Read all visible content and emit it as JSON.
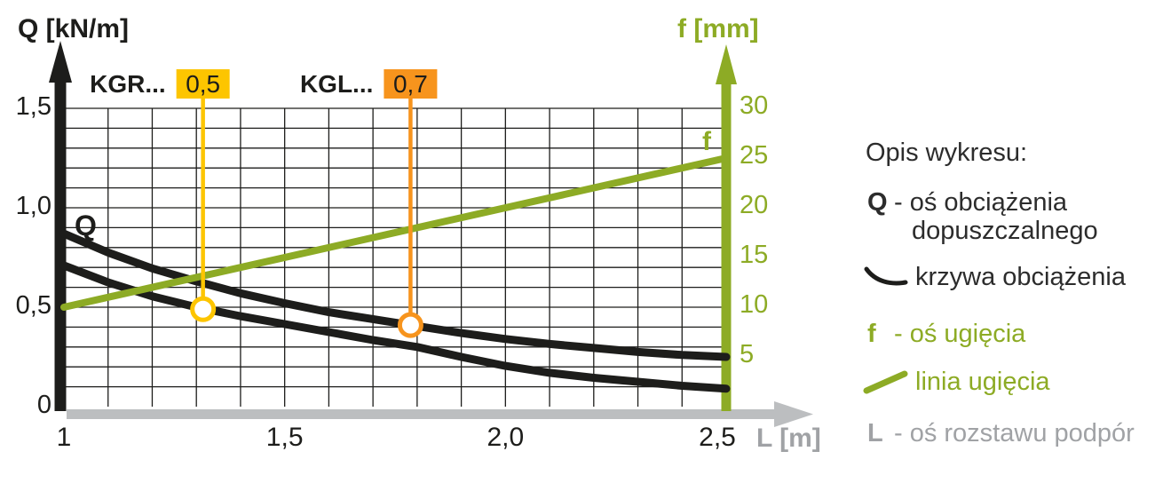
{
  "ui": {
    "q_axis_title": "Q [kN/m]",
    "f_axis_title": "f [mm]",
    "l_axis_title": "L [m]",
    "q_curve_label": "Q",
    "f_line_label": "f",
    "legend": {
      "title": "Opis wykresu:",
      "q_symbol": "Q",
      "q_text_line1": "- oś obciążenia",
      "q_text_line2": "dopuszczalnego",
      "curve_text": "krzywa obciążenia",
      "f_symbol": "f",
      "f_text": "- oś ugięcia",
      "line_text": "linia ugięcia",
      "l_symbol": "L",
      "l_text": "- oś rozstawu podpór"
    }
  },
  "colors": {
    "black": "#1d1d1b",
    "green": "#8dab25",
    "gray_axis": "#bcbec0",
    "gray_text": "#a0a2a5",
    "yellow": "#fdc500",
    "orange": "#f7941d"
  },
  "chart_data": {
    "type": "line",
    "title": "",
    "x_axis": {
      "label": "L [m]",
      "min": 1,
      "max": 2.5,
      "grid_step": 0.1,
      "ticks": [
        {
          "v": 1.0,
          "label": "1"
        },
        {
          "v": 1.5,
          "label": "1,5"
        },
        {
          "v": 2.0,
          "label": "2,0"
        },
        {
          "v": 2.5,
          "label": "2,5"
        }
      ]
    },
    "y_axis_left": {
      "label": "Q [kN/m]",
      "min": 0,
      "max": 1.5,
      "grid_step": 0.1,
      "ticks": [
        {
          "v": 0,
          "label": "0"
        },
        {
          "v": 0.5,
          "label": "0,5"
        },
        {
          "v": 1.0,
          "label": "1,0"
        },
        {
          "v": 1.5,
          "label": "1,5"
        }
      ]
    },
    "y_axis_right": {
      "label": "f [mm]",
      "min": 0,
      "max": 30,
      "ticks": [
        {
          "v": 5,
          "label": "5"
        },
        {
          "v": 10,
          "label": "10"
        },
        {
          "v": 15,
          "label": "15"
        },
        {
          "v": 20,
          "label": "20"
        },
        {
          "v": 25,
          "label": "25"
        },
        {
          "v": 30,
          "label": "30"
        }
      ]
    },
    "grid": true,
    "series": [
      {
        "name": "krzywa obciążenia (dolna, KGR)",
        "axis": "left",
        "color": "#1d1d1b",
        "points": [
          [
            1.0,
            0.71
          ],
          [
            1.1,
            0.625
          ],
          [
            1.2,
            0.555
          ],
          [
            1.3,
            0.5
          ],
          [
            1.4,
            0.455
          ],
          [
            1.5,
            0.415
          ],
          [
            1.6,
            0.375
          ],
          [
            1.7,
            0.335
          ],
          [
            1.8,
            0.3
          ],
          [
            1.9,
            0.25
          ],
          [
            2.0,
            0.205
          ],
          [
            2.1,
            0.17
          ],
          [
            2.2,
            0.145
          ],
          [
            2.3,
            0.125
          ],
          [
            2.4,
            0.105
          ],
          [
            2.5,
            0.09
          ]
        ]
      },
      {
        "name": "krzywa obciążenia (górna, KGL)",
        "axis": "left",
        "color": "#1d1d1b",
        "points": [
          [
            1.0,
            0.87
          ],
          [
            1.1,
            0.775
          ],
          [
            1.2,
            0.695
          ],
          [
            1.3,
            0.63
          ],
          [
            1.4,
            0.57
          ],
          [
            1.5,
            0.52
          ],
          [
            1.6,
            0.475
          ],
          [
            1.7,
            0.44
          ],
          [
            1.8,
            0.405
          ],
          [
            1.9,
            0.37
          ],
          [
            2.0,
            0.34
          ],
          [
            2.1,
            0.315
          ],
          [
            2.2,
            0.295
          ],
          [
            2.3,
            0.275
          ],
          [
            2.4,
            0.26
          ],
          [
            2.5,
            0.25
          ]
        ]
      },
      {
        "name": "linia ugięcia",
        "axis": "right",
        "color": "#8dab25",
        "points": [
          [
            1.0,
            10
          ],
          [
            2.5,
            25
          ]
        ]
      }
    ],
    "callouts": [
      {
        "label": "KGR...",
        "value": "0,5",
        "color": "#fdc500",
        "x": 1.315,
        "y": 0.49
      },
      {
        "label": "KGL...",
        "value": "0,7",
        "color": "#f7941d",
        "x": 1.785,
        "y": 0.41
      }
    ]
  }
}
